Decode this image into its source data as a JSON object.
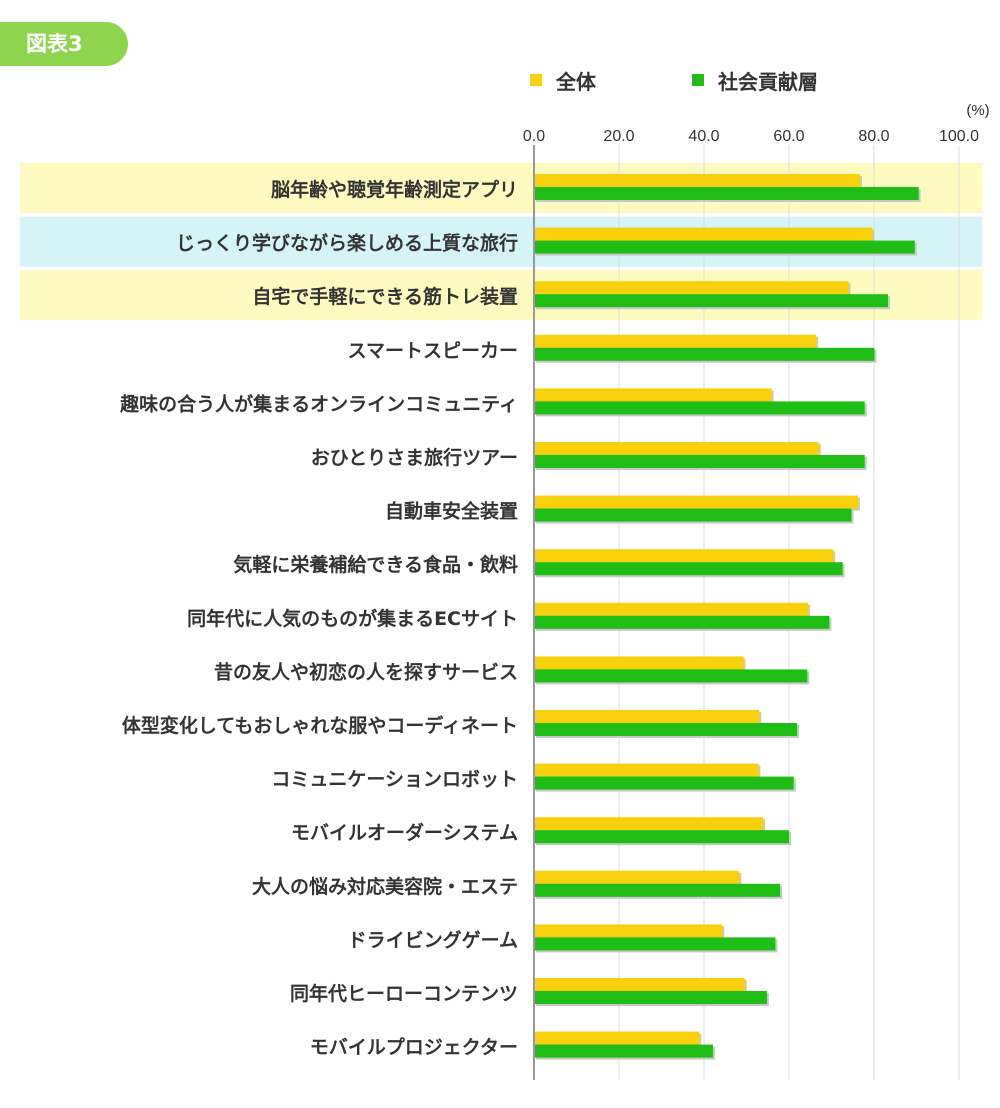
{
  "badge": "図表3",
  "chart_data": {
    "type": "bar",
    "orientation": "horizontal",
    "unit_label": "(%)",
    "xlim": [
      0,
      100
    ],
    "ticks": [
      "0.0",
      "20.0",
      "40.0",
      "60.0",
      "80.0",
      "100.0"
    ],
    "tick_values": [
      0,
      20,
      40,
      60,
      80,
      100
    ],
    "grid": true,
    "legend_position": "top",
    "categories": [
      "脳年齢や聴覚年齢測定アプリ",
      "じっくり学びながら楽しめる上質な旅行",
      "自宅で手軽にできる筋トレ装置",
      "スマートスピーカー",
      "趣味の合う人が集まるオンラインコミュニティ",
      "おひとりさま旅行ツアー",
      "自動車安全装置",
      "気軽に栄養補給できる食品・飲料",
      "同年代に人気のものが集まるECサイト",
      "昔の友人や初恋の人を探すサービス",
      "体型変化してもおしゃれな服やコーディネート",
      "コミュニケーションロボット",
      "モバイルオーダーシステム",
      "大人の悩み対応美容院・エステ",
      "ドライビングゲーム",
      "同年代ヒーローコンテンツ",
      "モバイルプロジェクター"
    ],
    "highlighted_rows": [
      {
        "index": 0,
        "color": "#fffbc0"
      },
      {
        "index": 1,
        "color": "#d4f4f7"
      },
      {
        "index": 2,
        "color": "#fffbc0"
      }
    ],
    "series": [
      {
        "name": "全体",
        "color": "#f8d10c",
        "values": [
          76.7,
          79.6,
          74.0,
          66.4,
          55.9,
          67.0,
          76.2,
          70.4,
          64.5,
          49.3,
          53.0,
          52.8,
          53.9,
          48.3,
          44.3,
          49.6,
          38.9
        ]
      },
      {
        "name": "社会貢献層",
        "color": "#1fbd16",
        "values": [
          90.5,
          89.6,
          83.3,
          80.1,
          77.8,
          77.8,
          74.7,
          72.6,
          69.5,
          64.3,
          61.9,
          61.1,
          60.0,
          57.9,
          56.8,
          54.8,
          42.1
        ]
      }
    ]
  }
}
